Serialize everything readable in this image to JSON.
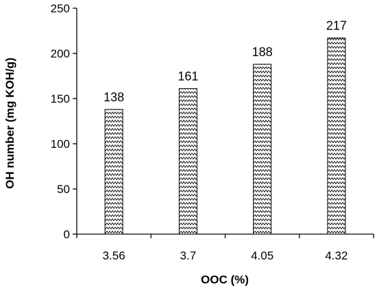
{
  "chart_data": {
    "type": "bar",
    "categories": [
      "3.56",
      "3.7",
      "4.05",
      "4.32"
    ],
    "values": [
      138,
      161,
      188,
      217
    ],
    "data_labels": [
      "138",
      "161",
      "188",
      "217"
    ],
    "xlabel": "OOC (%)",
    "ylabel": "OH number (mg KOH/g)",
    "ylim": [
      0,
      250
    ],
    "yticks": [
      0,
      50,
      100,
      150,
      200,
      250
    ],
    "grid": false,
    "legend": "none",
    "bar_fill": "zigzag-hatch",
    "colors": {
      "bar_stroke": "#000000",
      "pattern": "#000000",
      "background": "#ffffff"
    }
  }
}
